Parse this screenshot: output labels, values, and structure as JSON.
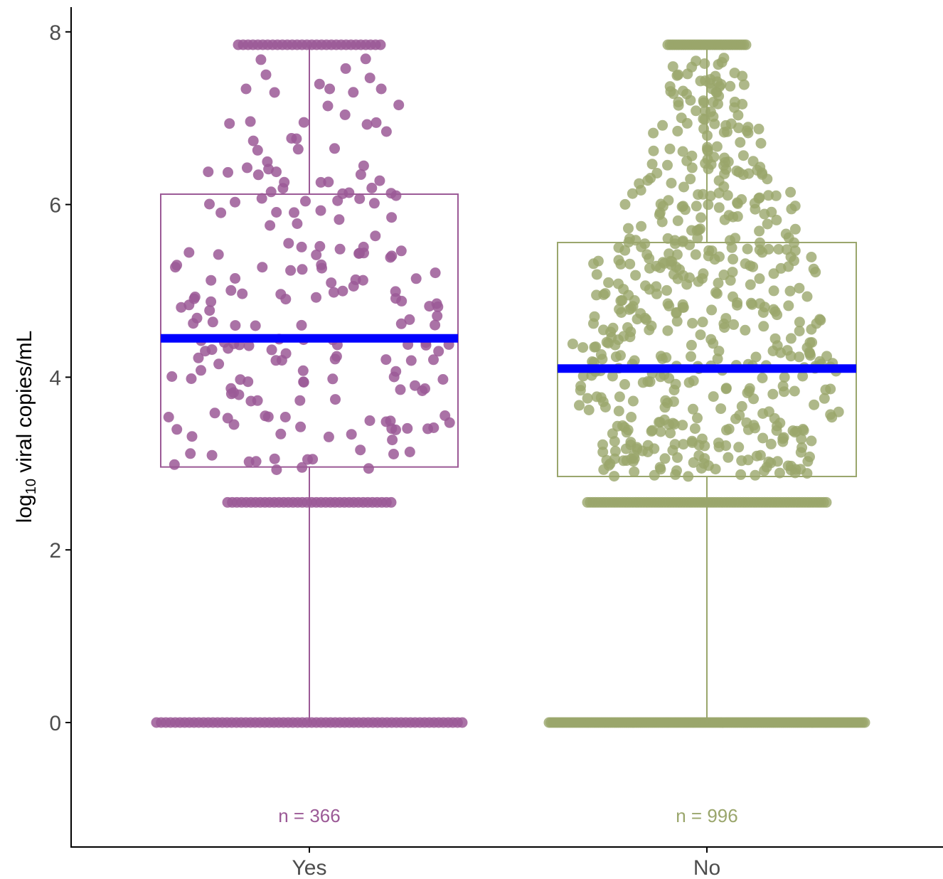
{
  "chart_data": {
    "type": "box_dotplot",
    "ylabel_prefix": "log",
    "ylabel_sub": "10",
    "ylabel_suffix": " viral copies/mL",
    "xlabel": "",
    "ylim": [
      -1.4,
      8.3
    ],
    "yticks": [
      "0",
      "2",
      "4",
      "6",
      "8"
    ],
    "categories": [
      "Yes",
      "No"
    ],
    "median_color": "#0000ff",
    "groups": [
      {
        "name": "Yes",
        "color": "#9b5996",
        "n_label": "n = 366",
        "n": 366,
        "whisker_low": 0.0,
        "q1": 2.96,
        "median": 4.45,
        "q3": 6.12,
        "whisker_high": 7.85,
        "count_at_zero": 66,
        "count_at_2_55": 48,
        "count_at_7_85": 40
      },
      {
        "name": "No",
        "color": "#9aa66c",
        "n_label": "n = 996",
        "n": 996,
        "whisker_low": 0.0,
        "q1": 2.85,
        "median": 4.1,
        "q3": 5.56,
        "whisker_high": 7.83,
        "count_at_zero": 160,
        "count_at_2_55": 150,
        "count_at_7_85": 50
      }
    ]
  }
}
